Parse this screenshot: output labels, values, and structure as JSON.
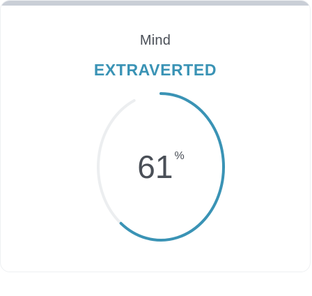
{
  "trait": {
    "category": "Mind",
    "result": "EXTRAVERTED",
    "percent": 61,
    "percent_label": "61",
    "percent_sign": "%"
  },
  "colors": {
    "accent": "#3a93b5",
    "track": "#eceef0",
    "text": "#4a4f57",
    "top_bar": "#c9ced6"
  }
}
